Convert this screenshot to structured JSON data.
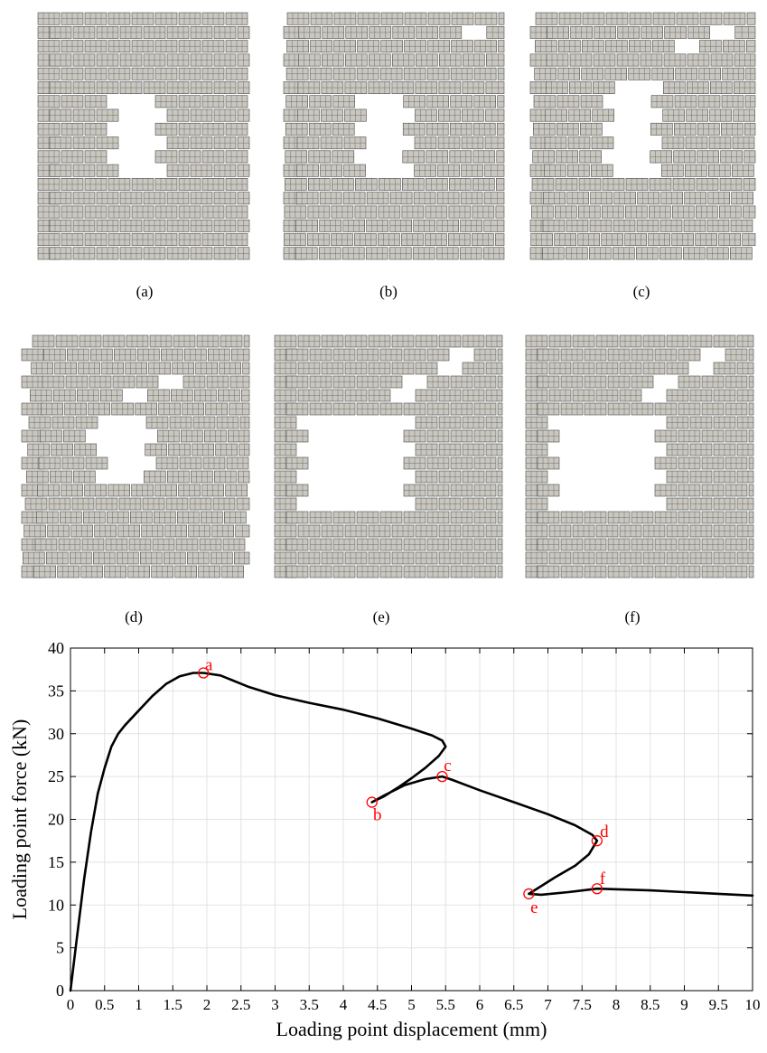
{
  "panels": [
    {
      "label": "(a)"
    },
    {
      "label": "(b)"
    },
    {
      "label": "(c)"
    },
    {
      "label": "(d)"
    },
    {
      "label": "(e)"
    },
    {
      "label": "(f)"
    }
  ],
  "colors": {
    "brick_fill": "#c9c7bf",
    "brick_grid": "#4a4a4a",
    "curve": "#000000",
    "marker": "#ff0000",
    "grid": "#e3e3e3"
  },
  "chart_data": {
    "type": "line",
    "xlabel": "Loading point displacement (mm)",
    "ylabel": "Loading point force (kN)",
    "xlim": [
      0,
      10
    ],
    "ylim": [
      0,
      40
    ],
    "grid": true,
    "xticks": [
      "0",
      "0.5",
      "1",
      "1.5",
      "2",
      "2.5",
      "3",
      "3.5",
      "4",
      "4.5",
      "5",
      "5.5",
      "6",
      "6.5",
      "7",
      "7.5",
      "8",
      "8.5",
      "9",
      "9.5",
      "10"
    ],
    "yticks": [
      "0",
      "5",
      "10",
      "15",
      "20",
      "25",
      "30",
      "35",
      "40"
    ],
    "series": [
      {
        "x": [
          0,
          0.1,
          0.2,
          0.3,
          0.4,
          0.5,
          0.6,
          0.7,
          0.8,
          1.0,
          1.2,
          1.4,
          1.6,
          1.8,
          1.95,
          2.2,
          2.6,
          3.0,
          3.5,
          4.0,
          4.5,
          5.0,
          5.3,
          5.45,
          5.5,
          5.4,
          5.2,
          5.0,
          4.8,
          4.6,
          4.42,
          4.6,
          4.9,
          5.2,
          5.45,
          5.6,
          6.0,
          6.5,
          7.0,
          7.4,
          7.65,
          7.72,
          7.6,
          7.4,
          7.1,
          6.9,
          6.72,
          6.9,
          7.3,
          7.72,
          8.5,
          9.0,
          9.5,
          10.0
        ],
        "y": [
          0,
          6.5,
          13.0,
          18.5,
          23.0,
          26.0,
          28.5,
          30.0,
          31.0,
          32.7,
          34.4,
          35.8,
          36.7,
          37.1,
          37.1,
          36.8,
          35.5,
          34.5,
          33.6,
          32.8,
          31.8,
          30.6,
          29.8,
          29.2,
          28.5,
          27.4,
          26.0,
          24.8,
          23.7,
          22.7,
          22.0,
          22.8,
          24.0,
          24.7,
          25.0,
          24.6,
          23.4,
          22.0,
          20.6,
          19.3,
          18.2,
          17.5,
          15.9,
          14.6,
          13.2,
          12.2,
          11.3,
          11.2,
          11.5,
          11.9,
          11.7,
          11.5,
          11.3,
          11.1
        ]
      }
    ],
    "markers": [
      {
        "label": "a",
        "x": 1.95,
        "y": 37.1
      },
      {
        "label": "b",
        "x": 4.42,
        "y": 22.0
      },
      {
        "label": "c",
        "x": 5.45,
        "y": 25.0
      },
      {
        "label": "d",
        "x": 7.72,
        "y": 17.5
      },
      {
        "label": "e",
        "x": 6.72,
        "y": 11.3
      },
      {
        "label": "f",
        "x": 7.72,
        "y": 11.9
      }
    ]
  }
}
